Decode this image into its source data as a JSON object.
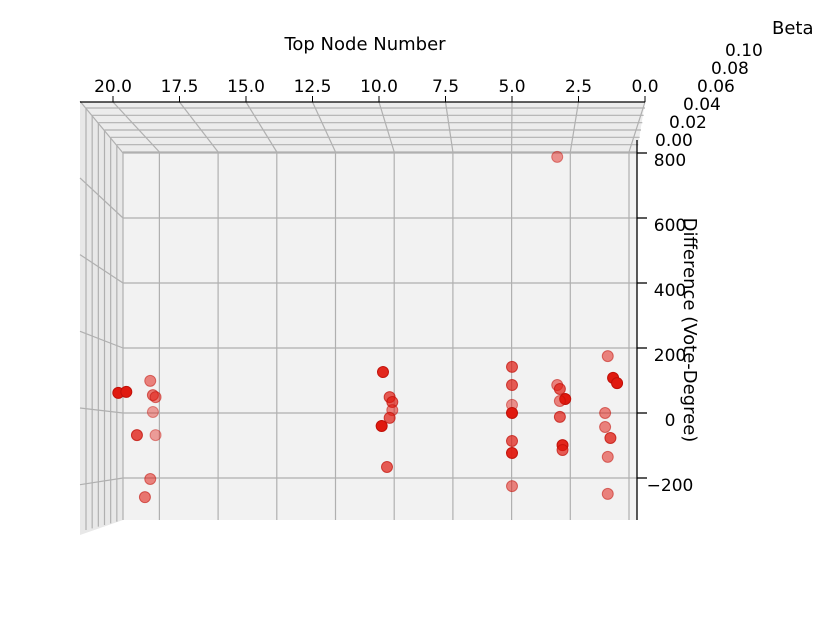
{
  "chart_data": {
    "type": "scatter",
    "projection": "3d",
    "xlabel": "Top Node Number",
    "ylabel": "Difference (Vote-Degree)",
    "zlabel": "Beta",
    "x_ticks": [
      "20.0",
      "17.5",
      "15.0",
      "12.5",
      "10.0",
      "7.5",
      "5.0",
      "2.5",
      "0.0"
    ],
    "x_tick_values": [
      20,
      17.5,
      15,
      12.5,
      10,
      7.5,
      5,
      2.5,
      0
    ],
    "y_ticks": [
      "800",
      "600",
      "400",
      "200",
      "0",
      "−200"
    ],
    "y_tick_values": [
      800,
      600,
      400,
      200,
      0,
      -200
    ],
    "z_ticks": [
      "0.00",
      "0.02",
      "0.04",
      "0.06",
      "0.08",
      "0.10"
    ],
    "xlim": [
      0,
      20
    ],
    "ylim": [
      -300,
      800
    ],
    "zlim": [
      0,
      0.1
    ],
    "grid": true,
    "color": "#e0190f",
    "points": [
      {
        "x": 19.8,
        "y": 62,
        "z": 0.0
      },
      {
        "x": 19.5,
        "y": 65,
        "z": 0.0
      },
      {
        "x": 18.6,
        "y": 99,
        "z": 0.08
      },
      {
        "x": 18.5,
        "y": 55,
        "z": 0.07
      },
      {
        "x": 18.4,
        "y": 49,
        "z": 0.08
      },
      {
        "x": 18.5,
        "y": 3,
        "z": 0.1
      },
      {
        "x": 19.1,
        "y": -68,
        "z": 0.04
      },
      {
        "x": 18.4,
        "y": -68,
        "z": 0.1
      },
      {
        "x": 18.6,
        "y": -203,
        "z": 0.08
      },
      {
        "x": 18.8,
        "y": -259,
        "z": 0.07
      },
      {
        "x": 9.85,
        "y": 126,
        "z": 0.01
      },
      {
        "x": 9.6,
        "y": 49,
        "z": 0.05
      },
      {
        "x": 9.5,
        "y": 34,
        "z": 0.05
      },
      {
        "x": 9.5,
        "y": 9,
        "z": 0.08
      },
      {
        "x": 9.6,
        "y": -15,
        "z": 0.05
      },
      {
        "x": 9.9,
        "y": -40,
        "z": 0.0
      },
      {
        "x": 9.7,
        "y": -166,
        "z": 0.05
      },
      {
        "x": 5.0,
        "y": 142,
        "z": 0.05
      },
      {
        "x": 5.0,
        "y": 86,
        "z": 0.05
      },
      {
        "x": 5.0,
        "y": 25,
        "z": 0.09
      },
      {
        "x": 5.0,
        "y": 0,
        "z": 0.0
      },
      {
        "x": 5.0,
        "y": -86,
        "z": 0.05
      },
      {
        "x": 5.0,
        "y": -123,
        "z": 0.01
      },
      {
        "x": 5.0,
        "y": -225,
        "z": 0.08
      },
      {
        "x": 3.3,
        "y": 86,
        "z": 0.08
      },
      {
        "x": 3.2,
        "y": 74,
        "z": 0.05
      },
      {
        "x": 3.0,
        "y": 43,
        "z": 0.0
      },
      {
        "x": 3.2,
        "y": 37,
        "z": 0.08
      },
      {
        "x": 3.2,
        "y": -12,
        "z": 0.05
      },
      {
        "x": 3.1,
        "y": -99,
        "z": 0.01
      },
      {
        "x": 3.1,
        "y": -114,
        "z": 0.05
      },
      {
        "x": 1.4,
        "y": 175,
        "z": 0.08
      },
      {
        "x": 1.2,
        "y": 108,
        "z": 0.0
      },
      {
        "x": 1.05,
        "y": 92,
        "z": 0.0
      },
      {
        "x": 1.5,
        "y": 0,
        "z": 0.08
      },
      {
        "x": 1.5,
        "y": -43,
        "z": 0.08
      },
      {
        "x": 1.3,
        "y": -77,
        "z": 0.04
      },
      {
        "x": 1.4,
        "y": -135,
        "z": 0.08
      },
      {
        "x": 1.4,
        "y": -249,
        "z": 0.08
      },
      {
        "x": 3.3,
        "y": 788,
        "z": 0.09
      }
    ]
  }
}
